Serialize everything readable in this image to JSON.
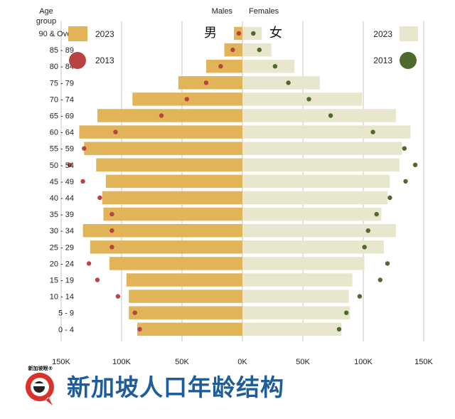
{
  "chart_data": {
    "type": "bar",
    "header_left": "Age group",
    "header_males": "Males",
    "header_females": "Females",
    "male_char": "男",
    "female_char": "女",
    "categories": [
      "90 & Over",
      "85 - 89",
      "80 - 84",
      "75 - 79",
      "70 - 74",
      "65 - 69",
      "60 - 64",
      "55 - 59",
      "50 - 54",
      "45 - 49",
      "40 - 44",
      "35 - 39",
      "30 - 34",
      "25 - 29",
      "20 - 24",
      "15 - 19",
      "10 - 14",
      "5 - 9",
      "0 - 4"
    ],
    "series": [
      {
        "name": "2023",
        "group": "Males",
        "values": [
          7000,
          15000,
          30000,
          53000,
          91000,
          120000,
          135000,
          131000,
          121000,
          113000,
          116000,
          115000,
          132000,
          126000,
          110000,
          96000,
          94000,
          94000,
          87000
        ]
      },
      {
        "name": "2013",
        "group": "Males",
        "values": [
          3000,
          8000,
          18000,
          30000,
          46000,
          67000,
          105000,
          131000,
          143000,
          132000,
          118000,
          108000,
          108000,
          108000,
          127000,
          120000,
          103000,
          89000,
          85000
        ]
      },
      {
        "name": "2023",
        "group": "Females",
        "values": [
          16000,
          24000,
          43000,
          64000,
          99000,
          127000,
          139000,
          132000,
          130000,
          122000,
          120000,
          115000,
          127000,
          117000,
          101000,
          91000,
          88000,
          89000,
          82000
        ]
      },
      {
        "name": "2013",
        "group": "Females",
        "values": [
          9000,
          14000,
          27000,
          38000,
          55000,
          73000,
          108000,
          134000,
          143000,
          135000,
          122000,
          111000,
          104000,
          101000,
          120000,
          114000,
          97000,
          86000,
          80000
        ]
      }
    ],
    "x_ticks": [
      "150K",
      "100K",
      "50K",
      "0K",
      "50K",
      "100K",
      "150K"
    ],
    "xlim": [
      -150000,
      150000
    ],
    "legend": {
      "male_2023_label": "2023",
      "male_2013_label": "2013",
      "female_2023_label": "2023",
      "female_2013_label": "2013"
    },
    "colors": {
      "male_bar": "#e1b45a",
      "female_bar": "#e8e6cc",
      "male_dot": "#b84341",
      "female_dot": "#4f6a2c",
      "grid": "#c6c6c6"
    },
    "grid": true
  },
  "footer": {
    "title": "新加坡人口年龄结构",
    "logo_text": "新加坡眼®"
  }
}
